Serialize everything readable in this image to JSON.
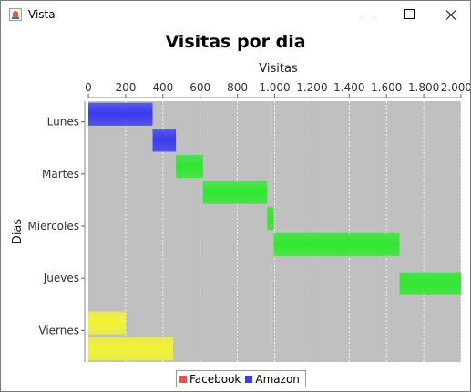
{
  "window": {
    "title": "Vista"
  },
  "colors": {
    "facebook": "#f25050",
    "amazon": "#3a3af0",
    "green": "#2ee82e",
    "yellow": "#f4f433",
    "plot_bg": "#c0c0c0"
  },
  "chart_data": {
    "type": "bar",
    "orientation": "horizontal",
    "title": "Visitas por dia",
    "xlabel": "Visitas",
    "ylabel": "Dias",
    "xlim": [
      0,
      2000
    ],
    "x_ticks": [
      "0",
      "200",
      "400",
      "600",
      "800",
      "1.000",
      "1.200",
      "1.400",
      "1.600",
      "1.800",
      "2.000"
    ],
    "categories": [
      "Lunes",
      "Martes",
      "Miercoles",
      "Jueves",
      "Viernes"
    ],
    "grid": true,
    "legend": [
      "Facebook",
      "Amazon"
    ],
    "bars": [
      {
        "category": "Lunes",
        "start": 0,
        "end": 345,
        "color": "#3a3af0"
      },
      {
        "category": "Lunes",
        "start": 345,
        "end": 470,
        "color": "#3a3af0"
      },
      {
        "category": "Martes",
        "start": 470,
        "end": 615,
        "color": "#2ee82e"
      },
      {
        "category": "Martes",
        "start": 615,
        "end": 960,
        "color": "#2ee82e"
      },
      {
        "category": "Miercoles",
        "start": 960,
        "end": 995,
        "color": "#2ee82e"
      },
      {
        "category": "Miercoles",
        "start": 995,
        "end": 1670,
        "color": "#2ee82e"
      },
      {
        "category": "Jueves",
        "start": 1670,
        "end": 2000,
        "color": "#2ee82e"
      },
      {
        "category": "Viernes",
        "start": 0,
        "end": 200,
        "color": "#f4f433"
      },
      {
        "category": "Viernes",
        "start": 0,
        "end": 455,
        "color": "#f4f433"
      }
    ]
  }
}
